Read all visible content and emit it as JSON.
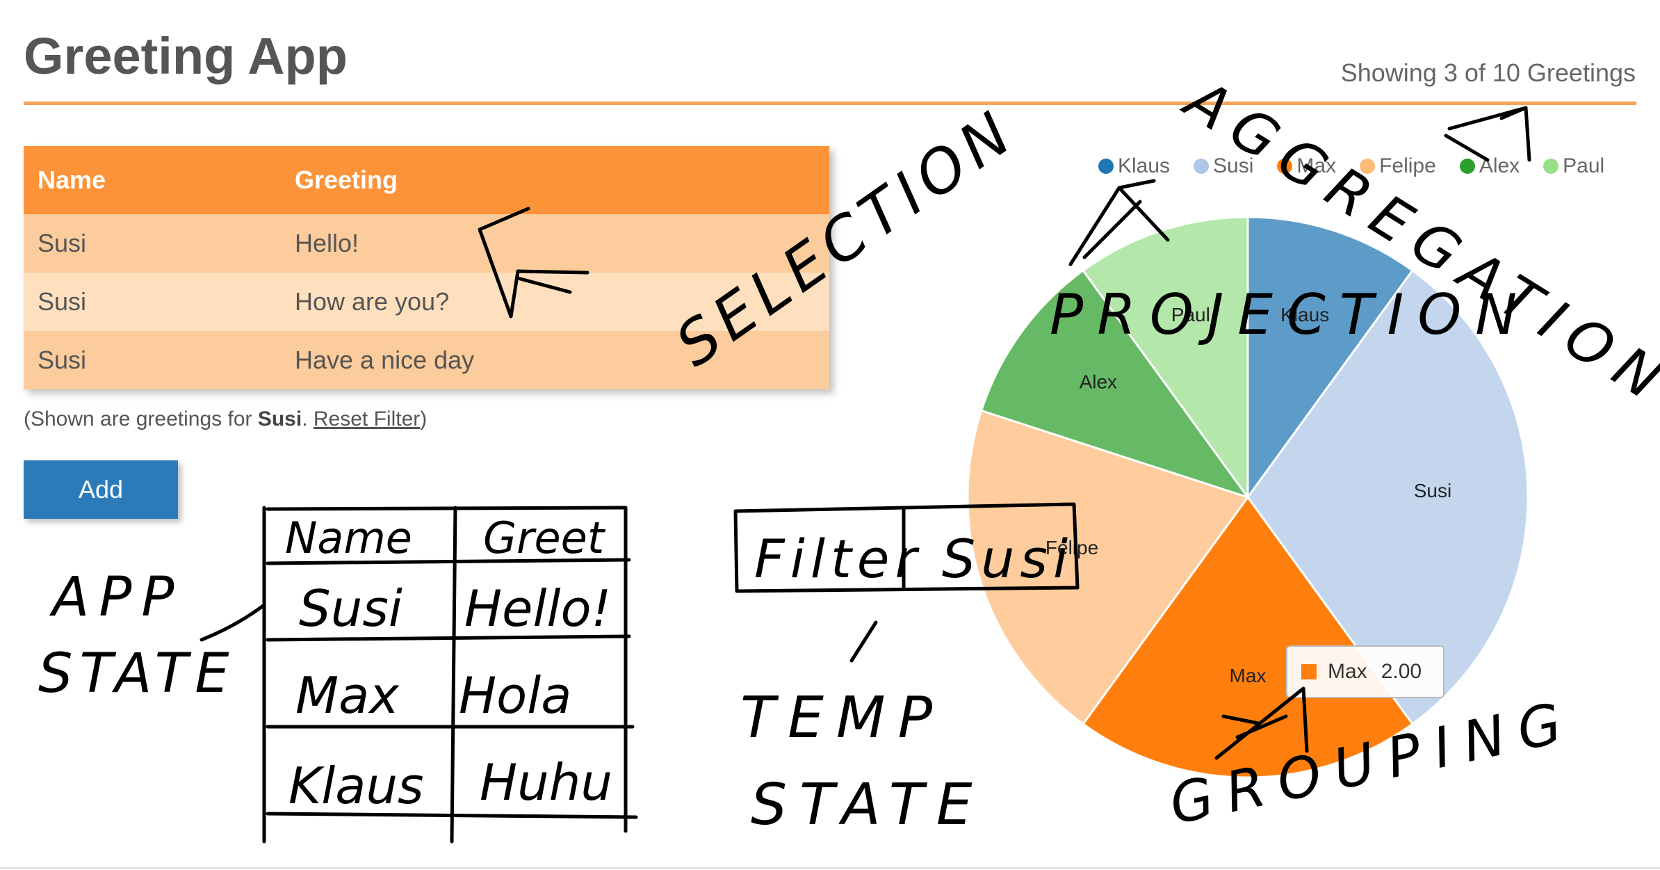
{
  "app": {
    "title": "Greeting App",
    "count_text": "Showing 3 of 10 Greetings"
  },
  "table": {
    "headers": [
      "Name",
      "Greeting"
    ],
    "rows": [
      {
        "name": "Susi",
        "greeting": "Hello!"
      },
      {
        "name": "Susi",
        "greeting": "How are you?"
      },
      {
        "name": "Susi",
        "greeting": "Have a nice day"
      }
    ]
  },
  "filter_note": {
    "prefix": "(Shown are greetings for ",
    "name": "Susi",
    "separator": ". ",
    "reset_label": "Reset Filter",
    "suffix": ")"
  },
  "add_button": {
    "label": "Add"
  },
  "chart_data": {
    "type": "pie",
    "categories": [
      "Klaus",
      "Susi",
      "Max",
      "Felipe",
      "Alex",
      "Paul"
    ],
    "values": [
      1,
      3,
      2,
      2,
      1,
      1
    ],
    "colors": [
      "#1f77b4",
      "#aec7e8",
      "#ff7f0e",
      "#ffbb78",
      "#2ca02c",
      "#98df8a"
    ],
    "legend_position": "top",
    "tooltip": {
      "label": "Max",
      "value": "2.00"
    }
  },
  "sketch_annotations": {
    "selection": "SELECTION",
    "aggregation": "AGGREGATION",
    "projection": "PROJECTION",
    "grouping": "GROUPING",
    "app_state_1": "APP",
    "app_state_2": "STATE",
    "temp_state_1": "TEMP",
    "temp_state_2": "STATE",
    "sketch_table_headers": [
      "Name",
      "Greet"
    ],
    "sketch_table_rows": [
      [
        "Susi",
        "Hello!"
      ],
      [
        "Max",
        "Hola"
      ],
      [
        "Klaus",
        "Huhu"
      ]
    ],
    "sketch_filter": [
      "Filter",
      "Susi"
    ]
  },
  "colors": {
    "accent": "#fd9338",
    "button": "#2b7bb9"
  }
}
